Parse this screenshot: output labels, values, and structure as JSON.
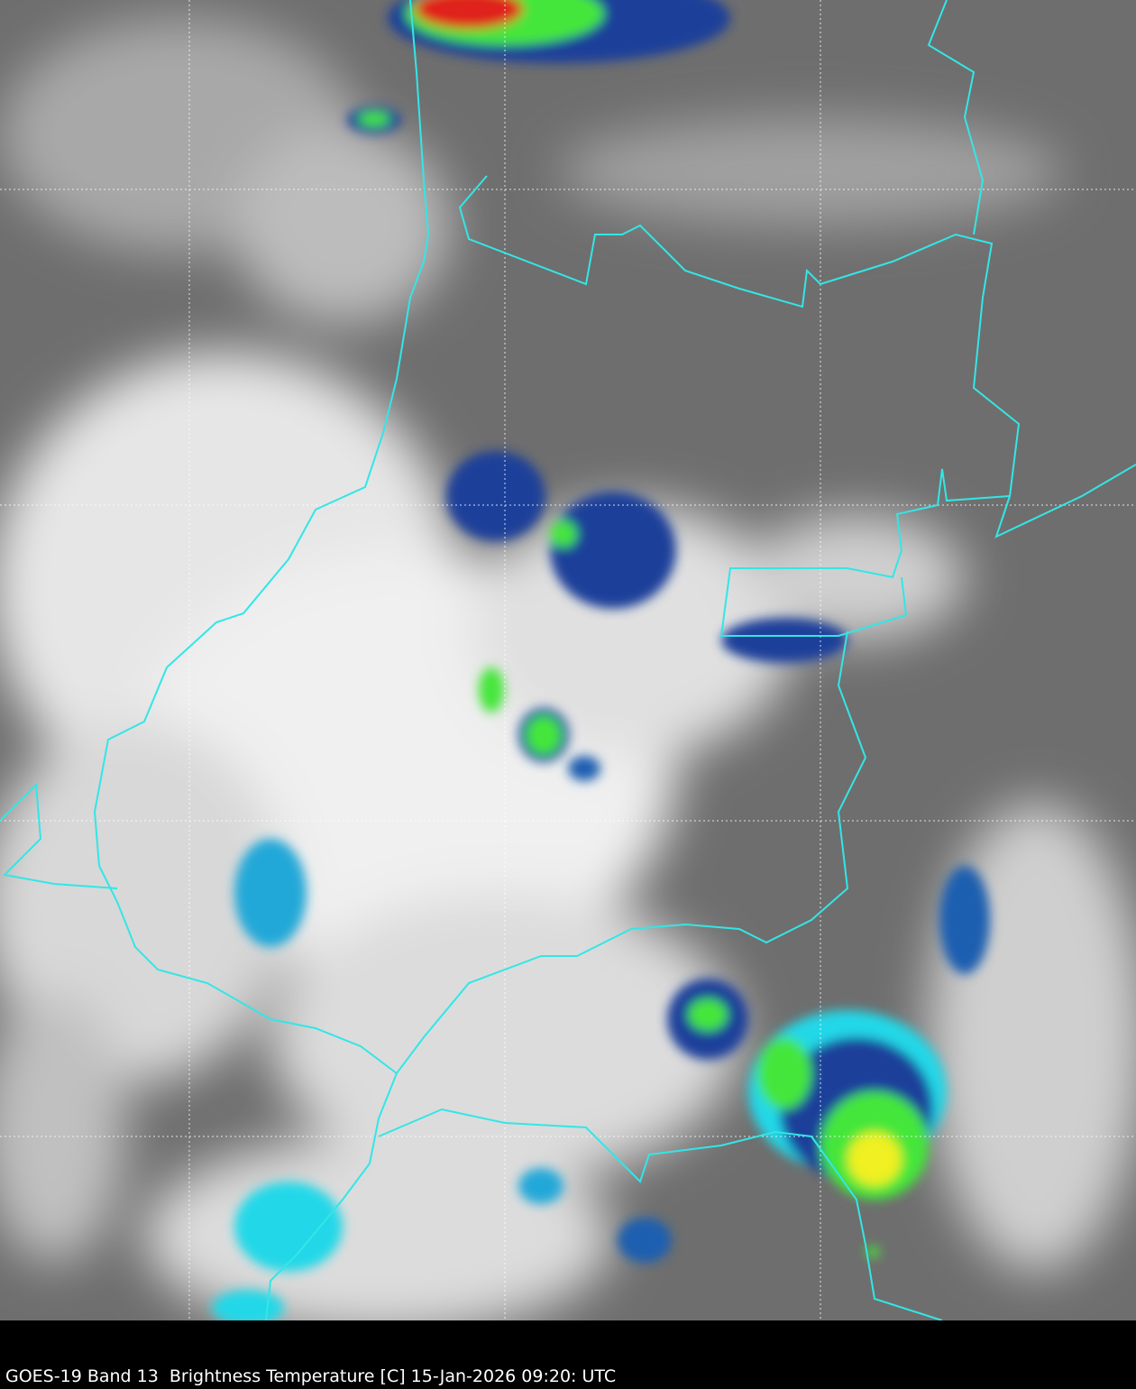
{
  "caption": "GOES-19 Band 13  Brightness Temperature [C] 15-Jan-2026 09:20: UTC",
  "colors": {
    "background_gray": "#6e6e6e",
    "cloud_white": "#f2f2f2",
    "border": "#33e6e6",
    "grid": "#ffffff",
    "cold_cyan": "#22d8e8",
    "cold_blue": "#1a3f9a",
    "cold_navy": "#0a1a6a",
    "cold_green": "#44e63a",
    "cold_yellow": "#f0f020",
    "cold_red": "#e0201a"
  }
}
